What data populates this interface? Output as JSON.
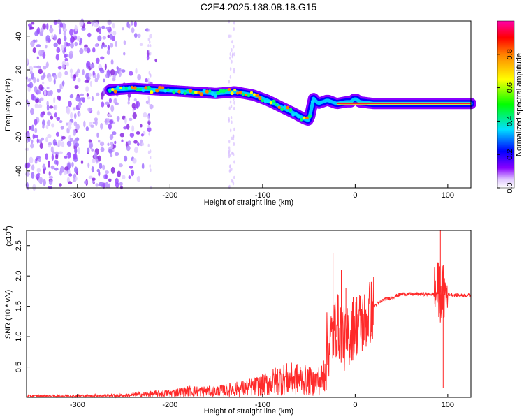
{
  "title": "C2E4.2025.138.08.18.G15",
  "chart_data": [
    {
      "type": "heatmap",
      "xlabel": "Height of straight line (km)",
      "ylabel": "Frequency (Hz)",
      "xlim": [
        -355,
        125
      ],
      "ylim": [
        -50,
        49
      ],
      "xticks": [
        -300,
        -200,
        -100,
        0,
        100
      ],
      "yticks": [
        -40,
        -20,
        0,
        20,
        40
      ],
      "colorbar": {
        "label": "Normalized spectral amplitude",
        "range": [
          0,
          1
        ],
        "ticks": [
          "0.0",
          "0.2",
          "0.4",
          "0.6",
          "0.8"
        ],
        "colors": [
          "#ffffff",
          "#d8b8ff",
          "#8800ff",
          "#0000ff",
          "#00e0ff",
          "#00ff00",
          "#ffff00",
          "#ff8000",
          "#ff0000",
          "#ff00ff"
        ]
      },
      "ridge": {
        "x": [
          -265,
          -240,
          -210,
          -180,
          -150,
          -130,
          -110,
          -95,
          -80,
          -65,
          -55,
          -50,
          -45,
          -40,
          -30,
          -20,
          -10,
          -5,
          0,
          5,
          20,
          60,
          90,
          100,
          125
        ],
        "frequency": [
          8,
          9,
          8,
          7,
          6,
          7,
          5,
          2,
          -2,
          -6,
          -9,
          -10,
          3,
          0,
          2,
          0,
          1,
          1,
          3,
          1,
          0,
          0,
          0,
          0,
          0
        ]
      },
      "noise_region_x": [
        -355,
        -245
      ]
    },
    {
      "type": "line",
      "xlabel": "Height of straight line (km)",
      "ylabel": "SNR (10 * v/v)",
      "yscale_label": "(x10",
      "yscale_exp": "4",
      "xlim": [
        -355,
        125
      ],
      "ylim": [
        0,
        2.75
      ],
      "xticks": [
        -300,
        -200,
        -100,
        0,
        100
      ],
      "yticks": [
        "0.5",
        "1.0",
        "1.5",
        "2.0",
        "2.5"
      ],
      "ytick_values": [
        0.5,
        1.0,
        1.5,
        2.0,
        2.5
      ],
      "color": "#ff2a2a",
      "series": [
        {
          "x": [
            -355,
            -250,
            -230,
            -200,
            -180,
            -150,
            -120,
            -100,
            -80,
            -60,
            -45,
            -35,
            -30,
            -25,
            -20,
            -15,
            -10,
            -5,
            0,
            10,
            20,
            30,
            50,
            70,
            85,
            90,
            95,
            100,
            110,
            125
          ],
          "y": [
            0.02,
            0.03,
            0.05,
            0.07,
            0.1,
            0.1,
            0.15,
            0.2,
            0.3,
            0.3,
            0.25,
            0.3,
            0.8,
            1.0,
            1.2,
            1.1,
            0.9,
            1.1,
            1.2,
            1.25,
            1.5,
            1.6,
            1.7,
            1.7,
            1.7,
            1.75,
            1.7,
            1.7,
            1.68,
            1.68
          ]
        }
      ],
      "bursts": [
        {
          "x": -24,
          "y": 2.38
        },
        {
          "x": -20,
          "y": 1.0
        },
        {
          "x": -15,
          "y": 2.1
        },
        {
          "x": -10,
          "y": 1.8
        },
        {
          "x": 92,
          "y": 2.75
        },
        {
          "x": 95,
          "y": 0.15
        }
      ]
    }
  ]
}
